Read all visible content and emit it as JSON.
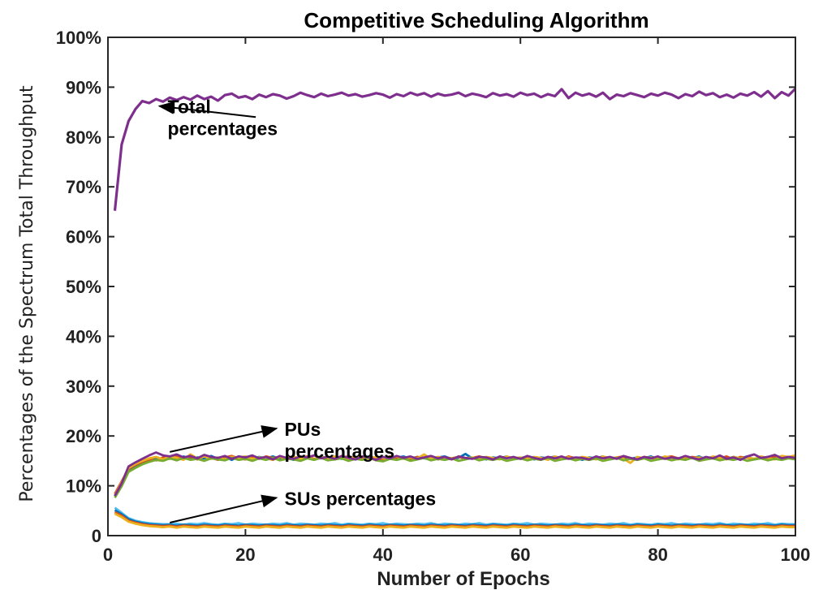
{
  "chart_data": {
    "type": "line",
    "title": "Competitive Scheduling Algorithm",
    "xlabel": "Number of Epochs",
    "ylabel": "Percentages of the Spectrum Total Throughput",
    "xlim": [
      0,
      100
    ],
    "ylim": [
      0,
      100
    ],
    "x_ticks": [
      0,
      20,
      40,
      60,
      80,
      100
    ],
    "x_tick_labels": [
      "0",
      "20",
      "40",
      "60",
      "80",
      "100"
    ],
    "y_ticks": [
      0,
      10,
      20,
      30,
      40,
      50,
      60,
      70,
      80,
      90,
      100
    ],
    "y_tick_labels": [
      "0",
      "10%",
      "20%",
      "30%",
      "40%",
      "50%",
      "60%",
      "70%",
      "80%",
      "90%",
      "100%"
    ],
    "grid": false,
    "x_start": 1,
    "x_step": 1,
    "series": [
      {
        "color": "#7e2f8e",
        "values": [
          65.2,
          78.5,
          83.2,
          85.6,
          87.2,
          86.8,
          87.6,
          87.1,
          87.9,
          87.4,
          88.0,
          87.5,
          88.3,
          87.6,
          88.1,
          87.3,
          88.4,
          88.7,
          87.9,
          88.2,
          87.6,
          88.5,
          88.0,
          88.6,
          88.3,
          87.7,
          88.2,
          88.9,
          88.4,
          88.0,
          88.7,
          88.2,
          88.5,
          88.9,
          88.3,
          88.6,
          88.1,
          88.4,
          88.8,
          88.5,
          87.9,
          88.6,
          88.2,
          88.9,
          88.4,
          88.8,
          88.1,
          88.7,
          88.3,
          88.5,
          88.9,
          88.2,
          88.7,
          88.4,
          88.0,
          88.8,
          88.3,
          88.6,
          88.1,
          88.9,
          88.4,
          88.7,
          88.0,
          88.6,
          88.2,
          89.6,
          87.8,
          88.9,
          88.3,
          88.7,
          88.1,
          88.9,
          87.6,
          88.5,
          88.2,
          88.8,
          88.4,
          88.0,
          88.7,
          88.3,
          88.9,
          88.5,
          87.8,
          88.6,
          88.2,
          89.1,
          88.4,
          88.8,
          88.0,
          88.5,
          87.9,
          88.7,
          88.3,
          89.0,
          88.1,
          89.2,
          87.8,
          89.0,
          88.3,
          89.7
        ]
      },
      {
        "color": "#0072bd",
        "values": [
          7.9,
          10.4,
          13.1,
          13.9,
          14.6,
          15.1,
          15.6,
          15.2,
          15.8,
          15.4,
          15.9,
          15.3,
          15.7,
          15.5,
          16.0,
          15.4,
          15.8,
          15.2,
          15.9,
          15.6,
          15.3,
          15.8,
          15.5,
          15.9,
          15.4,
          15.7,
          15.2,
          15.8,
          15.6,
          15.3,
          15.9,
          15.5,
          15.7,
          15.4,
          15.8,
          15.3,
          15.6,
          15.9,
          15.5,
          15.2,
          15.7,
          15.6,
          15.9,
          15.4,
          15.8,
          15.5,
          15.3,
          15.7,
          15.9,
          15.4,
          15.6,
          16.4,
          15.5,
          15.8,
          15.3,
          15.7,
          15.5,
          15.9,
          15.4,
          15.6,
          15.8,
          15.3,
          15.7,
          15.5,
          15.9,
          15.4,
          15.8,
          15.6,
          15.2,
          15.7,
          15.5,
          15.9,
          15.3,
          15.6,
          15.8,
          15.4,
          15.7,
          15.5,
          15.9,
          15.3,
          15.6,
          15.8,
          15.4,
          15.7,
          15.5,
          15.9,
          15.3,
          15.7,
          15.6,
          15.4,
          15.8,
          15.5,
          15.9,
          15.3,
          15.6,
          15.8,
          15.4,
          15.7,
          15.6,
          15.9
        ]
      },
      {
        "color": "#d95319",
        "values": [
          8.4,
          10.9,
          13.4,
          14.2,
          14.8,
          15.3,
          15.1,
          15.7,
          15.4,
          15.9,
          15.5,
          15.8,
          15.3,
          15.9,
          15.6,
          15.2,
          15.7,
          16.0,
          15.5,
          15.3,
          15.8,
          15.4,
          15.9,
          15.6,
          15.8,
          15.3,
          15.7,
          15.5,
          15.9,
          15.4,
          15.6,
          15.8,
          15.3,
          15.7,
          15.9,
          15.5,
          15.4,
          15.8,
          15.6,
          15.3,
          15.9,
          15.5,
          15.7,
          15.4,
          15.8,
          15.6,
          15.9,
          15.3,
          15.7,
          15.5,
          15.8,
          15.4,
          15.6,
          15.9,
          15.5,
          15.3,
          15.8,
          15.6,
          15.7,
          15.4,
          15.9,
          15.5,
          15.3,
          15.8,
          15.6,
          15.4,
          15.9,
          15.5,
          15.7,
          15.3,
          15.8,
          15.6,
          15.4,
          15.7,
          15.9,
          15.5,
          15.3,
          15.8,
          15.6,
          15.4,
          15.7,
          15.9,
          15.5,
          15.3,
          15.8,
          15.6,
          15.4,
          15.7,
          15.5,
          15.9,
          15.3,
          15.8,
          15.6,
          15.4,
          15.7,
          15.5,
          15.9,
          15.8,
          15.6,
          15.7
        ]
      },
      {
        "color": "#edb120",
        "values": [
          8.1,
          10.7,
          13.6,
          14.4,
          15.0,
          15.5,
          15.8,
          15.3,
          15.9,
          15.6,
          15.2,
          16.3,
          15.5,
          15.9,
          15.4,
          15.7,
          15.3,
          15.8,
          15.6,
          15.9,
          15.4,
          15.7,
          15.5,
          15.2,
          15.8,
          15.6,
          15.9,
          15.4,
          15.7,
          15.3,
          15.8,
          15.5,
          15.9,
          15.6,
          15.4,
          15.7,
          15.9,
          15.3,
          15.8,
          15.5,
          15.6,
          15.9,
          15.4,
          15.7,
          15.5,
          16.3,
          15.4,
          15.8,
          15.6,
          15.3,
          15.9,
          15.5,
          15.7,
          15.4,
          15.8,
          15.6,
          15.3,
          15.9,
          15.5,
          15.7,
          15.4,
          15.8,
          15.6,
          15.2,
          15.9,
          15.5,
          15.7,
          15.4,
          15.8,
          15.6,
          15.3,
          15.9,
          15.5,
          15.7,
          15.4,
          14.6,
          15.8,
          15.5,
          15.7,
          15.4,
          15.9,
          15.6,
          15.3,
          15.8,
          15.5,
          15.7,
          15.4,
          15.9,
          15.6,
          15.3,
          15.8,
          15.5,
          15.7,
          15.4,
          15.9,
          15.6,
          15.3,
          16.0,
          15.8,
          16.1
        ]
      },
      {
        "color": "#77ac30",
        "values": [
          7.6,
          9.9,
          12.8,
          13.6,
          14.3,
          14.8,
          15.2,
          15.0,
          15.5,
          15.1,
          15.6,
          15.2,
          15.4,
          15.0,
          15.5,
          15.3,
          15.1,
          15.6,
          15.2,
          15.4,
          15.0,
          15.5,
          15.2,
          15.6,
          15.1,
          15.4,
          15.3,
          15.0,
          15.5,
          15.2,
          15.6,
          15.1,
          15.3,
          15.5,
          15.0,
          15.4,
          15.2,
          15.6,
          15.1,
          14.9,
          15.4,
          15.2,
          15.5,
          15.0,
          15.3,
          15.6,
          15.1,
          15.4,
          15.2,
          15.5,
          15.0,
          15.3,
          15.6,
          15.1,
          15.4,
          15.2,
          15.5,
          15.0,
          15.3,
          15.5,
          15.1,
          15.4,
          15.2,
          15.6,
          15.0,
          15.3,
          15.5,
          15.1,
          15.4,
          15.2,
          15.5,
          15.0,
          15.3,
          15.6,
          15.1,
          15.4,
          15.2,
          15.5,
          15.0,
          15.3,
          15.5,
          15.1,
          15.4,
          15.2,
          15.6,
          15.0,
          15.3,
          15.5,
          15.1,
          15.4,
          15.2,
          15.5,
          15.0,
          15.3,
          15.5,
          15.1,
          15.4,
          15.2,
          15.5,
          15.3
        ]
      },
      {
        "color": "#7e2f8e",
        "values": [
          8.0,
          10.5,
          13.9,
          14.7,
          15.4,
          16.1,
          16.7,
          16.1,
          15.9,
          16.3,
          15.7,
          16.0,
          15.5,
          16.2,
          15.8,
          15.6,
          16.0,
          15.4,
          15.9,
          15.7,
          16.1,
          15.5,
          15.8,
          15.3,
          16.0,
          15.6,
          15.4,
          15.9,
          15.7,
          16.1,
          15.5,
          15.8,
          15.4,
          16.0,
          15.6,
          15.3,
          15.9,
          15.7,
          15.2,
          15.8,
          15.5,
          16.0,
          15.6,
          15.9,
          15.4,
          15.7,
          16.0,
          15.5,
          15.8,
          15.3,
          15.9,
          15.6,
          15.4,
          15.8,
          15.7,
          15.3,
          15.9,
          15.5,
          15.8,
          15.4,
          16.0,
          15.6,
          15.3,
          15.8,
          15.5,
          15.9,
          15.4,
          15.7,
          15.6,
          15.3,
          15.9,
          15.5,
          15.8,
          15.4,
          16.0,
          15.6,
          15.3,
          15.8,
          15.5,
          15.9,
          15.4,
          15.7,
          15.5,
          16.0,
          15.6,
          15.3,
          15.8,
          15.5,
          16.1,
          15.4,
          15.7,
          15.2,
          15.9,
          16.3,
          15.6,
          15.8,
          16.2,
          15.5,
          15.8,
          15.6
        ]
      },
      {
        "color": "#4dbeee",
        "values": [
          5.6,
          4.6,
          3.5,
          3.0,
          2.7,
          2.5,
          2.4,
          2.3,
          2.3,
          2.4,
          2.2,
          2.4,
          2.3,
          2.5,
          2.3,
          2.2,
          2.4,
          2.3,
          2.5,
          2.2,
          2.4,
          2.3,
          2.2,
          2.4,
          2.3,
          2.5,
          2.2,
          2.4,
          2.3,
          2.2,
          2.4,
          2.3,
          2.5,
          2.2,
          2.4,
          2.3,
          2.2,
          2.4,
          2.3,
          2.5,
          2.2,
          2.4,
          2.3,
          2.2,
          2.4,
          2.3,
          2.5,
          2.2,
          2.4,
          2.3,
          2.2,
          2.4,
          2.3,
          2.5,
          2.2,
          2.4,
          2.3,
          2.2,
          2.4,
          2.3,
          2.5,
          2.2,
          2.4,
          2.3,
          2.2,
          2.4,
          2.3,
          2.5,
          2.2,
          2.4,
          2.3,
          2.2,
          2.4,
          2.3,
          2.5,
          2.2,
          2.4,
          2.3,
          2.2,
          2.4,
          2.3,
          2.5,
          2.2,
          2.4,
          2.3,
          2.2,
          2.4,
          2.3,
          2.5,
          2.2,
          2.4,
          2.3,
          2.2,
          2.4,
          2.3,
          2.5,
          2.2,
          2.4,
          2.3,
          2.3
        ]
      },
      {
        "color": "#0072bd",
        "values": [
          5.1,
          4.3,
          3.3,
          2.8,
          2.5,
          2.3,
          2.2,
          2.1,
          2.2,
          2.0,
          2.2,
          2.1,
          2.0,
          2.2,
          2.1,
          2.0,
          2.2,
          2.1,
          2.0,
          2.2,
          2.1,
          2.0,
          2.2,
          2.1,
          2.0,
          2.2,
          2.1,
          2.0,
          2.2,
          2.1,
          2.0,
          2.2,
          2.1,
          2.0,
          2.2,
          2.1,
          2.0,
          2.2,
          2.1,
          2.0,
          2.2,
          2.1,
          2.0,
          2.2,
          2.1,
          2.0,
          2.2,
          2.1,
          2.0,
          2.2,
          2.1,
          2.0,
          2.2,
          2.1,
          2.0,
          2.2,
          2.1,
          2.0,
          2.2,
          2.1,
          2.0,
          2.2,
          2.1,
          2.0,
          2.2,
          2.1,
          2.0,
          2.2,
          2.1,
          2.0,
          2.2,
          2.1,
          2.0,
          2.2,
          2.1,
          2.0,
          2.2,
          2.1,
          2.0,
          2.2,
          2.1,
          2.0,
          2.2,
          2.1,
          2.0,
          2.2,
          2.1,
          2.0,
          2.2,
          2.1,
          2.0,
          2.2,
          2.1,
          2.0,
          2.2,
          2.1,
          2.0,
          2.2,
          2.1,
          2.1
        ]
      },
      {
        "color": "#d95319",
        "values": [
          4.7,
          4.0,
          3.0,
          2.6,
          2.3,
          2.1,
          2.0,
          1.9,
          2.0,
          1.8,
          2.0,
          1.9,
          1.8,
          2.0,
          1.9,
          1.8,
          2.0,
          1.9,
          1.8,
          2.0,
          1.9,
          1.8,
          2.0,
          1.9,
          1.8,
          2.0,
          1.9,
          1.8,
          2.0,
          1.9,
          1.8,
          2.0,
          1.9,
          1.8,
          2.0,
          1.9,
          1.8,
          2.0,
          1.9,
          1.8,
          2.0,
          1.9,
          1.8,
          2.0,
          1.9,
          1.8,
          2.0,
          1.9,
          1.8,
          2.0,
          1.9,
          1.8,
          2.0,
          1.9,
          1.8,
          2.0,
          1.9,
          1.8,
          2.0,
          1.9,
          1.8,
          2.0,
          1.9,
          1.8,
          2.0,
          1.9,
          1.8,
          2.0,
          1.9,
          1.8,
          2.0,
          1.9,
          1.8,
          2.0,
          1.9,
          1.8,
          2.0,
          1.9,
          1.8,
          2.0,
          1.9,
          1.8,
          2.0,
          1.9,
          1.8,
          2.0,
          1.9,
          1.8,
          2.0,
          1.9,
          1.8,
          2.0,
          1.9,
          1.8,
          2.0,
          1.9,
          1.8,
          2.0,
          1.9,
          1.9
        ]
      },
      {
        "color": "#edb120",
        "values": [
          4.4,
          3.7,
          2.8,
          2.4,
          2.1,
          1.9,
          1.8,
          1.7,
          1.8,
          1.6,
          1.8,
          1.7,
          1.6,
          1.8,
          1.7,
          1.6,
          1.8,
          1.7,
          1.6,
          1.8,
          1.7,
          1.6,
          1.8,
          1.7,
          1.6,
          1.8,
          1.7,
          1.6,
          1.8,
          1.7,
          1.6,
          1.8,
          1.7,
          1.6,
          1.8,
          1.7,
          1.6,
          1.8,
          1.7,
          1.6,
          1.8,
          1.7,
          1.6,
          1.8,
          1.7,
          1.6,
          1.8,
          1.7,
          1.6,
          1.8,
          1.7,
          1.6,
          1.8,
          1.7,
          1.6,
          1.8,
          1.7,
          1.6,
          1.8,
          1.7,
          1.6,
          1.8,
          1.7,
          1.6,
          1.8,
          1.7,
          1.6,
          1.8,
          1.7,
          1.6,
          1.8,
          1.7,
          1.6,
          1.8,
          1.7,
          1.6,
          1.8,
          1.7,
          1.6,
          1.8,
          1.7,
          1.6,
          1.8,
          1.7,
          1.6,
          1.8,
          1.7,
          1.6,
          1.8,
          1.7,
          1.6,
          1.8,
          1.7,
          1.6,
          1.8,
          1.7,
          1.6,
          1.8,
          1.7,
          1.7
        ]
      }
    ],
    "annotations": [
      {
        "lines": [
          "Total",
          "percentages"
        ],
        "arrow_from": [
          21.5,
          84.0
        ],
        "arrow_to": [
          7.5,
          86.2
        ]
      },
      {
        "lines": [
          "PUs",
          "percentages"
        ],
        "arrow_from": [
          9.0,
          16.8
        ],
        "arrow_to": [
          24.5,
          21.5
        ]
      },
      {
        "lines": [
          "SUs percentages"
        ],
        "arrow_from": [
          9.0,
          2.6
        ],
        "arrow_to": [
          24.5,
          7.6
        ]
      }
    ]
  }
}
